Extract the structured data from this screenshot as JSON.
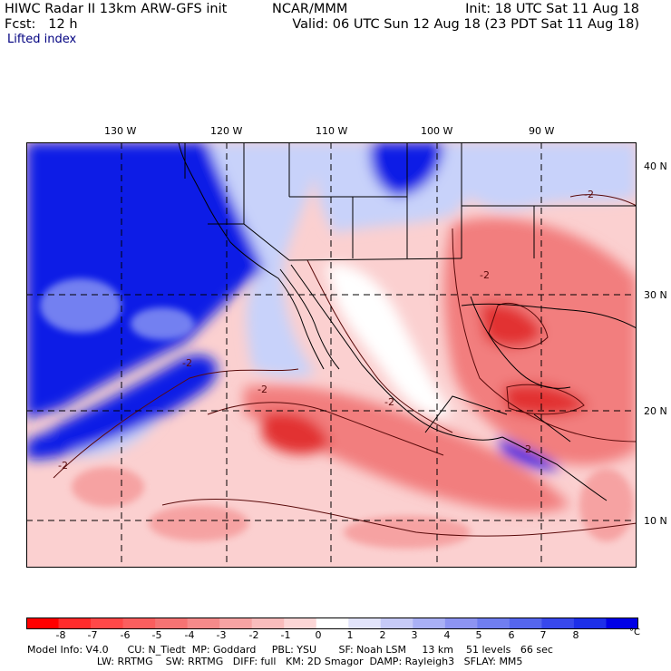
{
  "header": {
    "left_line1": "HIWC Radar II 13km ARW-GFS init",
    "model_source": "NCAR/MMM",
    "left_line2": "Fcst:   12 h",
    "init": "Init: 18 UTC Sat 11 Aug 18",
    "valid": "Valid: 06 UTC Sun 12 Aug 18 (23 PDT Sat 11 Aug 18)"
  },
  "field_name": "Lifted index",
  "map": {
    "longitude_labels": [
      "130 W",
      "120 W",
      "110 W",
      "100 W",
      "90 W"
    ],
    "latitude_labels": [
      "40 N",
      "30 N",
      "20 N",
      "10 N"
    ],
    "colors": {
      "ocean_stable": "#0a1ee6",
      "stable_light": "#c8d2fa",
      "neutral": "#ffffff",
      "unstable_light": "#fbd0d0",
      "unstable": "#f27e7e",
      "unstable_strong": "#e23030",
      "border": "#000000",
      "contour": "#5a0a0a"
    },
    "contour_labels": [
      "-2",
      "-2",
      "-2",
      "-2",
      "-2",
      "2",
      "-2"
    ]
  },
  "colorbar": {
    "colors": [
      "#ff0000",
      "#ff2b2b",
      "#ff4848",
      "#fb5e5e",
      "#f57373",
      "#f58a8a",
      "#f6a3a3",
      "#f9bcbc",
      "#fcd6d6",
      "#ffffff",
      "#e2e4fb",
      "#c6caf7",
      "#a9b0f5",
      "#8d94f2",
      "#707ef0",
      "#5566ee",
      "#3848ec",
      "#1d2fe9",
      "#0000e6"
    ],
    "tick_labels": [
      "-8",
      "-7",
      "-6",
      "-5",
      "-4",
      "-3",
      "-2",
      "-1",
      "0",
      "1",
      "2",
      "3",
      "4",
      "5",
      "6",
      "7",
      "8"
    ],
    "unit": "°C"
  },
  "model_info": {
    "line1": "Model Info: V4.0      CU: N_Tiedt  MP: Goddard     PBL: YSU       SF: Noah LSM     13 km    51 levels   66 sec",
    "line2": "                      LW: RRTMG    SW: RRTMG   DIFF: full   KM: 2D Smagor  DAMP: Rayleigh3   SFLAY: MM5"
  }
}
